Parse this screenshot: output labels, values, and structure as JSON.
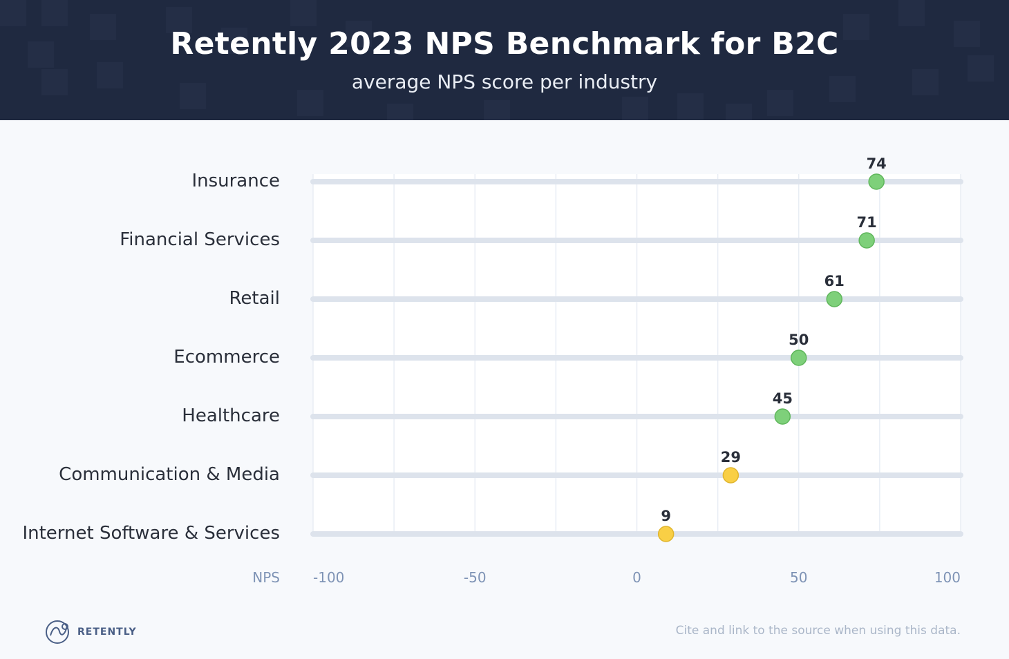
{
  "header": {
    "title": "Retently 2023 NPS Benchmark for B2C",
    "subtitle": "average NPS score per industry"
  },
  "chart_data": {
    "type": "dot",
    "title": "Retently 2023 NPS Benchmark for B2C",
    "subtitle": "average NPS score per industry",
    "xlabel": "NPS",
    "ylabel": "",
    "xlim": [
      -100,
      100
    ],
    "x_ticks": [
      -100,
      -50,
      0,
      50,
      100
    ],
    "grid": true,
    "categories": [
      "Insurance",
      "Financial Services",
      "Retail",
      "Ecommerce",
      "Healthcare",
      "Communication & Media",
      "Internet Software & Services"
    ],
    "values": [
      74,
      71,
      61,
      50,
      45,
      29,
      9
    ],
    "point_colors": [
      "#7ed07a",
      "#7ed07a",
      "#7ed07a",
      "#7ed07a",
      "#7ed07a",
      "#f9cf45",
      "#f9cf45"
    ]
  },
  "colors": {
    "header_bg": "#1f2940",
    "green": "#7ed07a",
    "yellow": "#f9cf45",
    "track": "#dde3ec",
    "axis_text": "#7e93b5"
  },
  "footer": {
    "brand": "RETENTLY",
    "note": "Cite and link to the source when using this data."
  }
}
